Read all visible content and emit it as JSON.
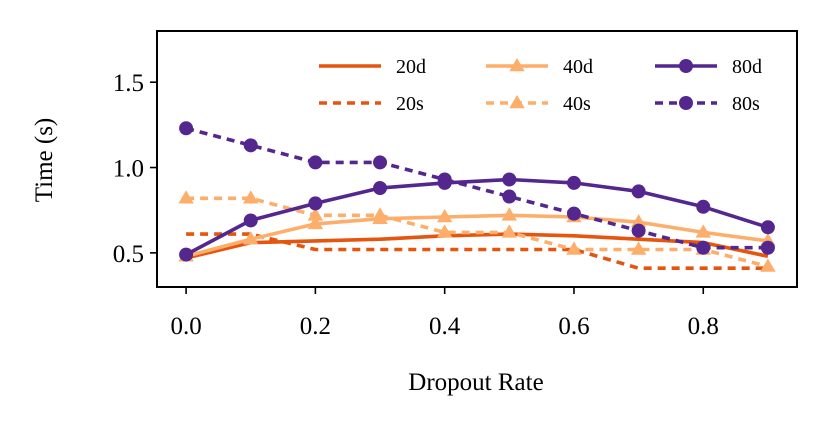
{
  "chart_data": {
    "type": "line",
    "title": "",
    "xlabel": "Dropout Rate",
    "ylabel": "Time (s)",
    "xlim": [
      -0.045,
      0.945
    ],
    "ylim": [
      0.3,
      1.8
    ],
    "xticks": [
      "0.0",
      "0.2",
      "0.4",
      "0.6",
      "0.8"
    ],
    "xtick_values": [
      0.0,
      0.2,
      0.4,
      0.6,
      0.8
    ],
    "yticks": [
      "0.5",
      "1.0",
      "1.5"
    ],
    "ytick_values": [
      0.5,
      1.0,
      1.5
    ],
    "grid": false,
    "legend_position": "top-right",
    "x": [
      0.0,
      0.1,
      0.2,
      0.3,
      0.4,
      0.5,
      0.6,
      0.7,
      0.8,
      0.9
    ],
    "series": [
      {
        "name": "20d",
        "color": "#e6550d",
        "dash": "solid",
        "marker": "none",
        "values": [
          0.47,
          0.56,
          0.57,
          0.58,
          0.6,
          0.61,
          0.6,
          0.58,
          0.56,
          0.48
        ]
      },
      {
        "name": "20s",
        "color": "#e6550d",
        "dash": "dotted",
        "marker": "none",
        "values": [
          0.61,
          0.61,
          0.52,
          0.52,
          0.52,
          0.52,
          0.52,
          0.41,
          0.41,
          0.41
        ]
      },
      {
        "name": "40d",
        "color": "#fdae6b",
        "dash": "solid",
        "marker": "triangle",
        "values": [
          0.48,
          0.58,
          0.67,
          0.7,
          0.71,
          0.72,
          0.71,
          0.68,
          0.62,
          0.57
        ]
      },
      {
        "name": "40s",
        "color": "#fdae6b",
        "dash": "dotted",
        "marker": "triangle",
        "values": [
          0.82,
          0.82,
          0.72,
          0.72,
          0.62,
          0.62,
          0.52,
          0.52,
          0.52,
          0.42
        ]
      },
      {
        "name": "80d",
        "color": "#54278f",
        "dash": "solid",
        "marker": "circle",
        "values": [
          0.49,
          0.69,
          0.79,
          0.88,
          0.91,
          0.93,
          0.91,
          0.86,
          0.77,
          0.65
        ]
      },
      {
        "name": "80s",
        "color": "#54278f",
        "dash": "dotted",
        "marker": "circle",
        "values": [
          1.23,
          1.13,
          1.03,
          1.03,
          0.93,
          0.83,
          0.73,
          0.63,
          0.53,
          0.53
        ]
      }
    ]
  }
}
